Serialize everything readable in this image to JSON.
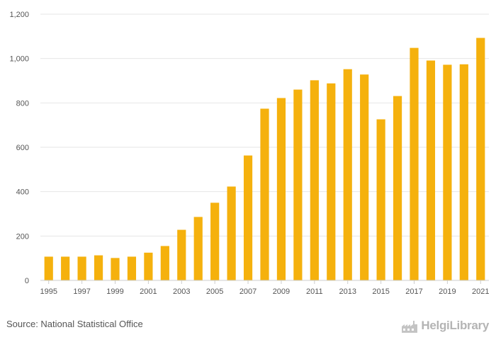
{
  "chart_data": {
    "type": "bar",
    "categories": [
      "1995",
      "1996",
      "1997",
      "1998",
      "1999",
      "2000",
      "2001",
      "2002",
      "2003",
      "2004",
      "2005",
      "2006",
      "2007",
      "2008",
      "2009",
      "2010",
      "2011",
      "2012",
      "2013",
      "2014",
      "2015",
      "2016",
      "2017",
      "2018",
      "2019",
      "2020",
      "2021"
    ],
    "values": [
      107,
      107,
      107,
      113,
      101,
      107,
      125,
      155,
      228,
      286,
      350,
      423,
      563,
      774,
      822,
      860,
      902,
      888,
      952,
      928,
      726,
      831,
      1048,
      991,
      972,
      974,
      1093
    ],
    "x_tick_labels": [
      "1995",
      "1997",
      "1999",
      "2001",
      "2003",
      "2005",
      "2007",
      "2009",
      "2011",
      "2013",
      "2015",
      "2017",
      "2019",
      "2021"
    ],
    "y_ticks": [
      0,
      200,
      400,
      600,
      800,
      1000,
      1200
    ],
    "y_tick_labels": [
      "0",
      "200",
      "400",
      "600",
      "800",
      "1,000",
      "1,200"
    ],
    "ylim": [
      0,
      1200
    ],
    "title": "",
    "xlabel": "",
    "ylabel": "",
    "grid": true,
    "bar_color": "#f5b10d",
    "grid_color": "#e6e6e6",
    "axis_color": "#cccccc"
  },
  "footer": {
    "source": "Source: National Statistical Office",
    "brand": "HelgiLibrary",
    "brand_icon": "factory-logo-icon"
  }
}
